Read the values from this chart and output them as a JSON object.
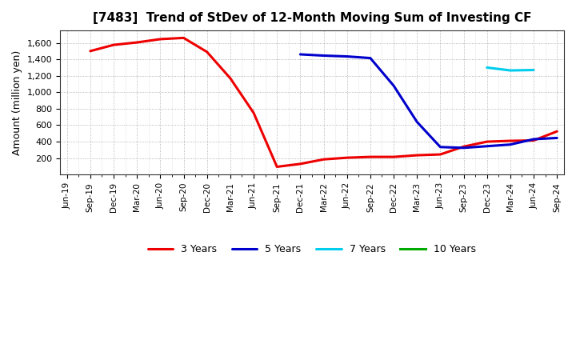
{
  "title": "[7483]  Trend of StDev of 12-Month Moving Sum of Investing CF",
  "ylabel": "Amount (million yen)",
  "background_color": "#ffffff",
  "plot_bg_color": "#ffffff",
  "grid_color": "#999999",
  "ylim": [
    0,
    1750
  ],
  "yticks": [
    200,
    400,
    600,
    800,
    1000,
    1200,
    1400,
    1600
  ],
  "series": {
    "3 Years": {
      "color": "#ee0000",
      "values": [
        null,
        1500,
        1575,
        1605,
        1645,
        1660,
        1490,
        1170,
        750,
        95,
        130,
        185,
        205,
        215,
        215,
        235,
        245,
        340,
        400,
        410,
        415,
        525
      ]
    },
    "5 Years": {
      "color": "#0000cc",
      "values": [
        null,
        null,
        null,
        null,
        null,
        null,
        null,
        null,
        null,
        null,
        1460,
        1445,
        1435,
        1415,
        1080,
        640,
        335,
        325,
        345,
        365,
        430,
        445
      ]
    },
    "7 Years": {
      "color": "#00ccee",
      "values": [
        null,
        null,
        null,
        null,
        null,
        null,
        null,
        null,
        null,
        null,
        null,
        null,
        null,
        null,
        null,
        null,
        null,
        null,
        1300,
        1265,
        1270,
        null
      ]
    },
    "10 Years": {
      "color": "#00aa00",
      "values": [
        null,
        null,
        null,
        null,
        null,
        null,
        null,
        null,
        null,
        null,
        null,
        null,
        null,
        null,
        null,
        null,
        null,
        null,
        null,
        null,
        null,
        null
      ]
    }
  },
  "legend_order": [
    "3 Years",
    "5 Years",
    "7 Years",
    "10 Years"
  ],
  "xtick_labels": [
    "Jun-19",
    "Sep-19",
    "Dec-19",
    "Mar-20",
    "Jun-20",
    "Sep-20",
    "Dec-20",
    "Mar-21",
    "Jun-21",
    "Sep-21",
    "Dec-21",
    "Mar-22",
    "Jun-22",
    "Sep-22",
    "Dec-22",
    "Mar-23",
    "Jun-23",
    "Sep-23",
    "Dec-23",
    "Mar-24",
    "Jun-24",
    "Sep-24"
  ]
}
